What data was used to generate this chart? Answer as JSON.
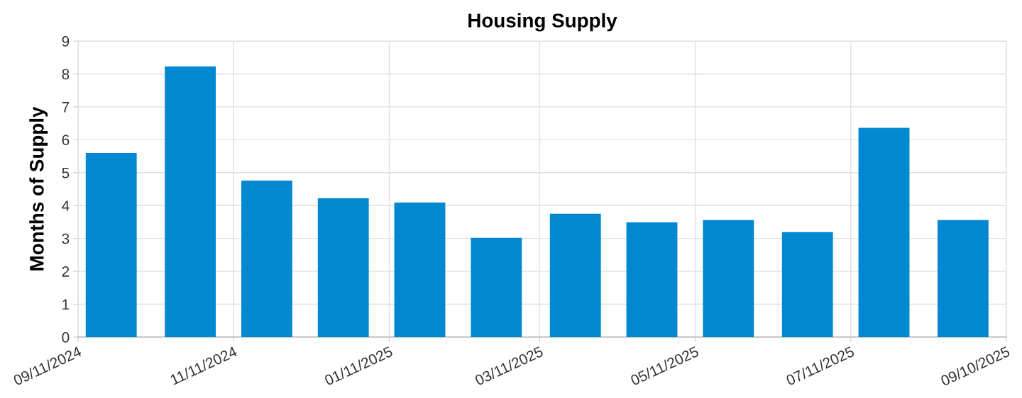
{
  "chart_data": {
    "type": "bar",
    "title": "Housing Supply",
    "ylabel": "Months of Supply",
    "x": [
      "2024-09-24",
      "2024-10-25",
      "2024-11-24",
      "2024-12-24",
      "2025-01-23",
      "2025-02-22",
      "2025-03-25",
      "2025-04-24",
      "2025-05-24",
      "2025-06-24",
      "2025-07-24",
      "2025-08-24"
    ],
    "values": [
      5.6,
      8.23,
      4.76,
      4.22,
      4.09,
      3.02,
      3.75,
      3.49,
      3.56,
      3.19,
      6.36,
      3.56
    ],
    "color": "#0288d1",
    "xlim": [
      "2024-09-11",
      "2025-09-10"
    ],
    "xticks": [
      {
        "value": "2024-09-11",
        "label": "09/11/2024"
      },
      {
        "value": "2024-11-11",
        "label": "11/11/2024"
      },
      {
        "value": "2025-01-11",
        "label": "01/11/2025"
      },
      {
        "value": "2025-03-11",
        "label": "03/11/2025"
      },
      {
        "value": "2025-05-11",
        "label": "05/11/2025"
      },
      {
        "value": "2025-07-11",
        "label": "07/11/2025"
      },
      {
        "value": "2025-09-10",
        "label": "09/10/2025"
      }
    ],
    "ylim": [
      0,
      9
    ],
    "yticks": [
      0,
      1,
      2,
      3,
      4,
      5,
      6,
      7,
      8,
      9
    ],
    "grid": true
  }
}
